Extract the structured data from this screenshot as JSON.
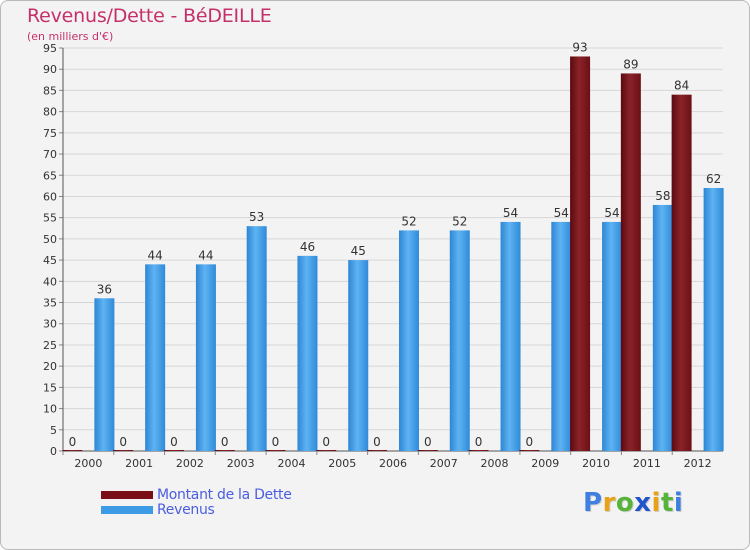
{
  "chart_data": {
    "type": "bar",
    "title": "Revenus/Dette - BéDEILLE",
    "subtitle": "(en milliers d'€)",
    "categories": [
      "2000",
      "2001",
      "2002",
      "2003",
      "2004",
      "2005",
      "2006",
      "2007",
      "2008",
      "2009",
      "2010",
      "2011",
      "2012"
    ],
    "series": [
      {
        "name": "Montant de la Dette",
        "color": "#7a0f17",
        "values": [
          0,
          0,
          0,
          0,
          0,
          0,
          0,
          0,
          0,
          0,
          93,
          89,
          84
        ]
      },
      {
        "name": "Revenus",
        "color": "#3d9be6",
        "values": [
          36,
          44,
          44,
          53,
          46,
          45,
          52,
          52,
          54,
          54,
          54,
          58,
          62
        ]
      }
    ],
    "ylim": [
      0,
      95
    ],
    "yticks": [
      0,
      5,
      10,
      15,
      20,
      25,
      30,
      35,
      40,
      45,
      50,
      55,
      60,
      65,
      70,
      75,
      80,
      85,
      90,
      95
    ],
    "grid": true,
    "legend": "bottom-left"
  },
  "branding": {
    "logo_letters": [
      "P",
      "r",
      "o",
      "x",
      "i",
      "t",
      "i"
    ],
    "logo_colors": [
      "#3f7fe0",
      "#e8a21a",
      "#58b33a",
      "#2255cc",
      "#e8a21a",
      "#58b33a",
      "#3f7fe0"
    ]
  }
}
